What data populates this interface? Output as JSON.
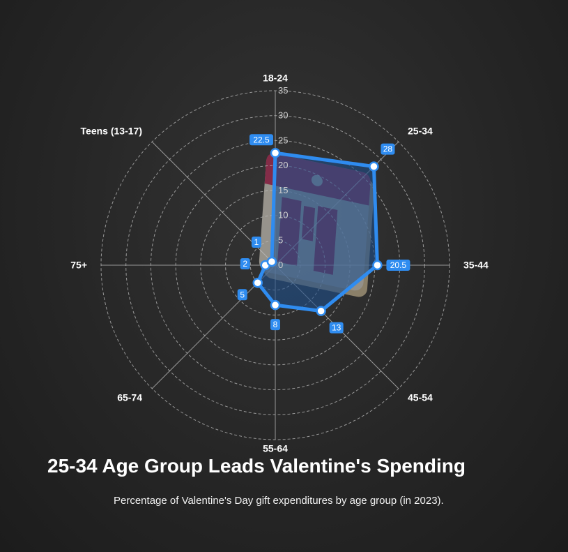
{
  "title": "25-34 Age Group Leads Valentine's Spending",
  "subtitle": "Percentage of Valentine's Day gift expenditures by age group (in 2023).",
  "colors": {
    "series_line": "#2f8cf0",
    "series_fill": "#1e4f8a",
    "label_bg": "#2f8cf0",
    "grid": "#bdbdbd",
    "background": "#262626"
  },
  "background_icon": "calendar-icon",
  "chart_data": {
    "type": "radar",
    "categories": [
      "18-24",
      "25-34",
      "35-44",
      "45-54",
      "55-64",
      "65-74",
      "75+",
      "Teens (13-17)"
    ],
    "series": [
      {
        "values": [
          22.5,
          28,
          20.5,
          13,
          8,
          5,
          2,
          1
        ]
      }
    ],
    "data_labels": [
      "22.5",
      "28",
      "20.5",
      "13",
      "8",
      "5",
      "2",
      "1"
    ],
    "radial_ticks": [
      "0",
      "5",
      "10",
      "15",
      "20",
      "25",
      "30",
      "35"
    ],
    "rmax": 35,
    "grid": true,
    "legend": false
  }
}
